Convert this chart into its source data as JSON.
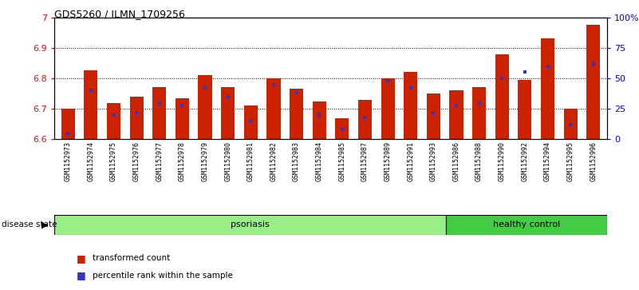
{
  "title": "GDS5260 / ILMN_1709256",
  "samples": [
    "GSM1152973",
    "GSM1152974",
    "GSM1152975",
    "GSM1152976",
    "GSM1152977",
    "GSM1152978",
    "GSM1152979",
    "GSM1152980",
    "GSM1152981",
    "GSM1152982",
    "GSM1152983",
    "GSM1152984",
    "GSM1152985",
    "GSM1152987",
    "GSM1152989",
    "GSM1152991",
    "GSM1152993",
    "GSM1152986",
    "GSM1152988",
    "GSM1152990",
    "GSM1152992",
    "GSM1152994",
    "GSM1152995",
    "GSM1152996"
  ],
  "bar_values": [
    6.7,
    6.825,
    6.72,
    6.74,
    6.77,
    6.735,
    6.81,
    6.77,
    6.71,
    6.8,
    6.765,
    6.725,
    6.67,
    6.73,
    6.8,
    6.82,
    6.75,
    6.76,
    6.77,
    6.88,
    6.795,
    6.93,
    6.7,
    6.975
  ],
  "percentile_values": [
    5,
    40,
    20,
    22,
    30,
    28,
    42,
    35,
    15,
    45,
    38,
    20,
    8,
    18,
    48,
    42,
    22,
    28,
    30,
    50,
    55,
    60,
    12,
    62
  ],
  "psoriasis_count": 17,
  "healthy_count": 7,
  "ymin": 6.6,
  "ymax": 7.0,
  "yticks": [
    6.6,
    6.7,
    6.8,
    6.9,
    7.0
  ],
  "ytick_labels": [
    "6.6",
    "6.7",
    "6.8",
    "6.9",
    "7"
  ],
  "right_yticks": [
    0,
    25,
    50,
    75,
    100
  ],
  "right_yticklabels": [
    "0",
    "25",
    "50",
    "75",
    "100%"
  ],
  "bar_color": "#cc2200",
  "blue_color": "#3333cc",
  "psoriasis_color": "#99ee88",
  "healthy_color": "#44cc44",
  "bg_color": "#cccccc",
  "plot_bg_color": "#ffffff"
}
